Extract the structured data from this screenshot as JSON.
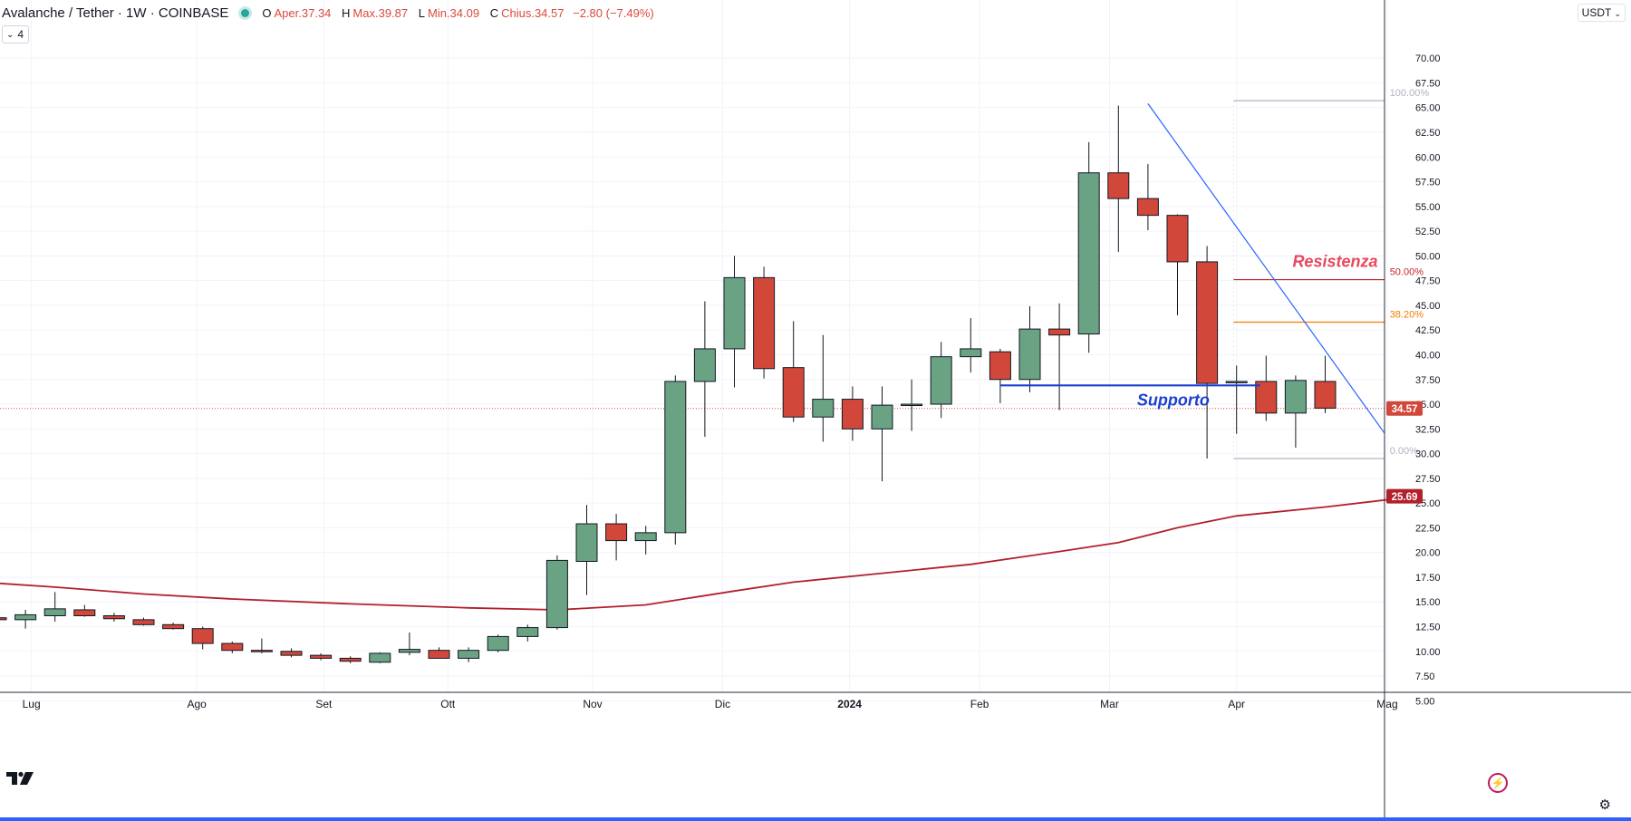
{
  "header": {
    "symbol": "Avalanche / Tether · 1W · COINBASE",
    "ohlc": {
      "open_label": "O",
      "open": "Aper.37.34",
      "high_label": "H",
      "high": "Max.39.87",
      "low_label": "L",
      "low": "Min.34.09",
      "close_label": "C",
      "close": "Chius.34.57",
      "change": "−2.80 (−7.49%)"
    },
    "indicator_count": "4",
    "currency": "USDT"
  },
  "colors": {
    "up": "#6aa383",
    "down": "#d1483b",
    "ma": "#b2202c",
    "trendline": "#2962ff",
    "support": "#1a3fd1",
    "resistance_text": "#e8475c",
    "fib_50": "#c62828",
    "fib_382": "#f57c00",
    "fib_gray": "#b0b3bd"
  },
  "chart_data": {
    "type": "candlestick",
    "interval": "1W",
    "ylim": [
      2.5,
      72.5
    ],
    "y_ticks": [
      5,
      7.5,
      10,
      12.5,
      15,
      17.5,
      20,
      22.5,
      25,
      27.5,
      30,
      32.5,
      35,
      37.5,
      40,
      42.5,
      45,
      47.5,
      50,
      52.5,
      55,
      57.5,
      60,
      62.5,
      65,
      67.5,
      70
    ],
    "x_ticks": [
      "Lug",
      "Ago",
      "Set",
      "Ott",
      "Nov",
      "Dic",
      "2024",
      "Feb",
      "Mar",
      "Apr",
      "Mag"
    ],
    "x_tick_weeks": [
      1.2,
      6.8,
      11.1,
      15.3,
      20.2,
      24.6,
      28.9,
      33.3,
      37.7,
      42.0,
      47.1
    ],
    "candles": [
      {
        "o": 13.4,
        "h": 13.6,
        "l": 13.0,
        "c": 13.2
      },
      {
        "o": 13.2,
        "h": 14.2,
        "l": 12.3,
        "c": 13.7
      },
      {
        "o": 13.6,
        "h": 16.0,
        "l": 13.0,
        "c": 14.3
      },
      {
        "o": 14.2,
        "h": 14.7,
        "l": 13.5,
        "c": 13.6
      },
      {
        "o": 13.6,
        "h": 13.9,
        "l": 13.0,
        "c": 13.3
      },
      {
        "o": 13.2,
        "h": 13.4,
        "l": 12.6,
        "c": 12.7
      },
      {
        "o": 12.7,
        "h": 12.9,
        "l": 12.2,
        "c": 12.3
      },
      {
        "o": 12.3,
        "h": 12.5,
        "l": 10.2,
        "c": 10.8
      },
      {
        "o": 10.8,
        "h": 11.0,
        "l": 9.8,
        "c": 10.1
      },
      {
        "o": 10.1,
        "h": 11.3,
        "l": 9.8,
        "c": 10.0
      },
      {
        "o": 10.0,
        "h": 10.3,
        "l": 9.4,
        "c": 9.6
      },
      {
        "o": 9.6,
        "h": 9.8,
        "l": 9.1,
        "c": 9.3
      },
      {
        "o": 9.3,
        "h": 9.5,
        "l": 8.8,
        "c": 9.0
      },
      {
        "o": 8.9,
        "h": 9.9,
        "l": 8.8,
        "c": 9.8
      },
      {
        "o": 9.9,
        "h": 11.9,
        "l": 9.6,
        "c": 10.2
      },
      {
        "o": 10.1,
        "h": 10.4,
        "l": 9.3,
        "c": 9.3
      },
      {
        "o": 9.3,
        "h": 10.4,
        "l": 8.9,
        "c": 10.1
      },
      {
        "o": 10.1,
        "h": 11.7,
        "l": 9.9,
        "c": 11.5
      },
      {
        "o": 11.5,
        "h": 12.7,
        "l": 11.0,
        "c": 12.4
      },
      {
        "o": 12.4,
        "h": 19.7,
        "l": 12.2,
        "c": 19.2
      },
      {
        "o": 19.1,
        "h": 24.8,
        "l": 15.7,
        "c": 22.9
      },
      {
        "o": 22.9,
        "h": 23.9,
        "l": 19.2,
        "c": 21.2
      },
      {
        "o": 21.2,
        "h": 22.7,
        "l": 19.8,
        "c": 22.0
      },
      {
        "o": 22.0,
        "h": 37.9,
        "l": 20.8,
        "c": 37.3
      },
      {
        "o": 37.3,
        "h": 45.4,
        "l": 31.7,
        "c": 40.6
      },
      {
        "o": 40.6,
        "h": 50.0,
        "l": 36.7,
        "c": 47.8
      },
      {
        "o": 47.8,
        "h": 48.9,
        "l": 37.6,
        "c": 38.6
      },
      {
        "o": 38.7,
        "h": 43.4,
        "l": 33.2,
        "c": 33.7
      },
      {
        "o": 33.7,
        "h": 42.0,
        "l": 31.2,
        "c": 35.5
      },
      {
        "o": 35.5,
        "h": 36.8,
        "l": 31.3,
        "c": 32.5
      },
      {
        "o": 32.5,
        "h": 36.8,
        "l": 27.2,
        "c": 34.9
      },
      {
        "o": 34.9,
        "h": 37.5,
        "l": 32.3,
        "c": 35.0
      },
      {
        "o": 35.0,
        "h": 41.3,
        "l": 33.6,
        "c": 39.8
      },
      {
        "o": 39.8,
        "h": 43.7,
        "l": 38.2,
        "c": 40.6
      },
      {
        "o": 40.3,
        "h": 40.6,
        "l": 35.1,
        "c": 37.5
      },
      {
        "o": 37.5,
        "h": 44.9,
        "l": 36.2,
        "c": 42.6
      },
      {
        "o": 42.6,
        "h": 45.2,
        "l": 34.4,
        "c": 42.0
      },
      {
        "o": 42.1,
        "h": 61.5,
        "l": 40.2,
        "c": 58.4
      },
      {
        "o": 58.4,
        "h": 65.2,
        "l": 50.4,
        "c": 55.8
      },
      {
        "o": 55.8,
        "h": 59.3,
        "l": 52.6,
        "c": 54.1
      },
      {
        "o": 54.1,
        "h": 54.2,
        "l": 44.0,
        "c": 49.4
      },
      {
        "o": 49.4,
        "h": 51.0,
        "l": 29.5,
        "c": 37.1
      },
      {
        "o": 37.2,
        "h": 38.9,
        "l": 32.0,
        "c": 37.3
      },
      {
        "o": 37.3,
        "h": 39.9,
        "l": 33.3,
        "c": 34.1
      },
      {
        "o": 34.1,
        "h": 37.9,
        "l": 30.6,
        "c": 37.4
      },
      {
        "o": 37.3,
        "h": 39.9,
        "l": 34.1,
        "c": 34.6
      }
    ],
    "moving_average": [
      [
        0,
        16.9
      ],
      [
        2,
        16.5
      ],
      [
        5,
        15.8
      ],
      [
        8,
        15.3
      ],
      [
        12,
        14.8
      ],
      [
        16,
        14.4
      ],
      [
        19,
        14.2
      ],
      [
        22,
        14.7
      ],
      [
        25,
        16.1
      ],
      [
        27,
        17.0
      ],
      [
        30,
        17.9
      ],
      [
        33,
        18.8
      ],
      [
        36,
        20.1
      ],
      [
        38,
        21.0
      ],
      [
        40,
        22.5
      ],
      [
        42,
        23.7
      ],
      [
        45,
        24.6
      ],
      [
        47,
        25.3
      ],
      [
        48,
        25.69
      ]
    ],
    "current_price": 34.57,
    "ma_label": "25.69",
    "trendline": {
      "start": [
        39.0,
        65.4
      ],
      "end": [
        47.0,
        32.1
      ]
    },
    "support": {
      "x_start": 34.0,
      "x_end": 42.8,
      "y": 36.9,
      "label": "Supporto"
    },
    "resistance_label": "Resistenza",
    "fib_levels": [
      {
        "label": "100.00%",
        "value": 65.7,
        "color": "fib_gray"
      },
      {
        "label": "50.00%",
        "value": 47.6,
        "color": "fib_50"
      },
      {
        "label": "38.20%",
        "value": 43.3,
        "color": "fib_382"
      },
      {
        "label": "0.00%",
        "value": 29.5,
        "color": "fib_gray"
      }
    ],
    "fib_range": [
      41.9,
      47.0
    ]
  }
}
